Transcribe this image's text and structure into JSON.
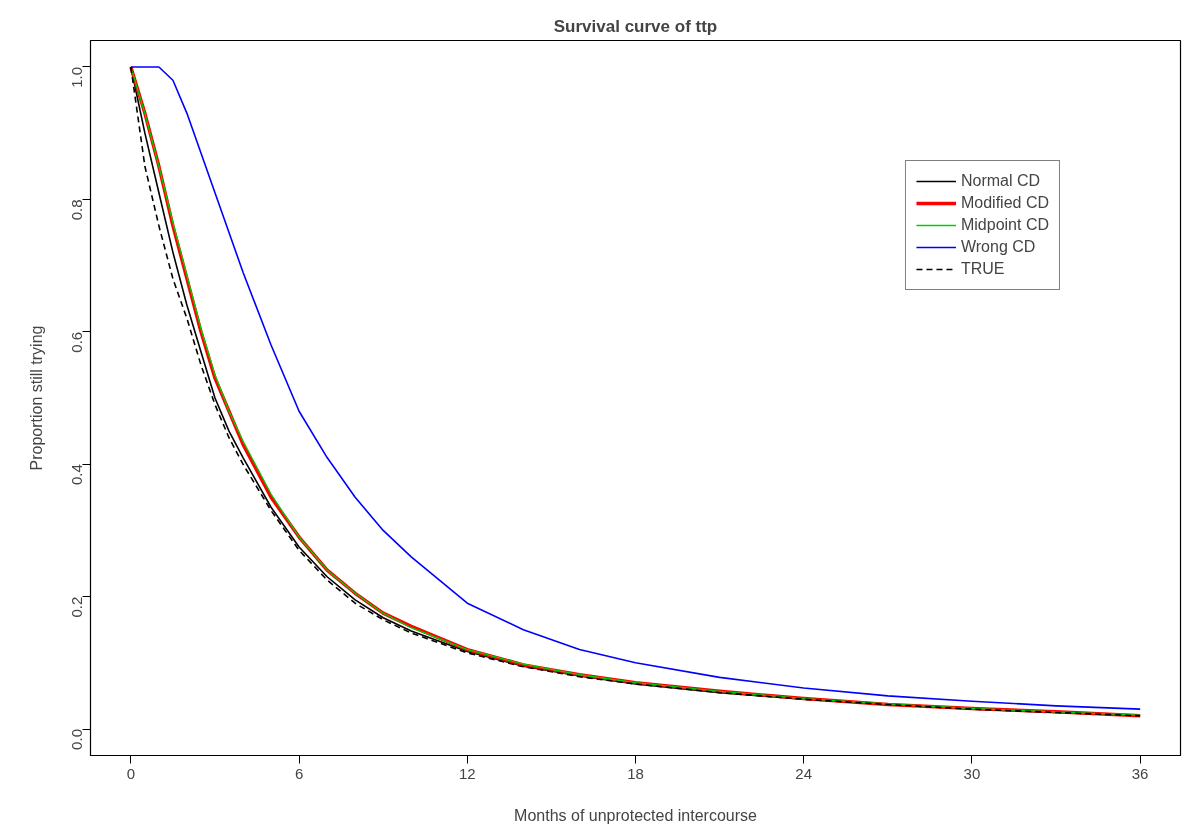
{
  "chart_data": {
    "type": "line",
    "title": "Survival curve of ttp",
    "xlabel": "Months of unprotected intercourse",
    "ylabel": "Proportion still trying",
    "x": [
      0,
      0.5,
      1,
      1.5,
      2,
      2.5,
      3,
      3.5,
      4,
      5,
      6,
      7,
      8,
      9,
      10,
      12,
      14,
      16,
      18,
      21,
      24,
      27,
      30,
      33,
      36
    ],
    "series": [
      {
        "name": "Normal CD",
        "color": "#000000",
        "line_style": "solid",
        "values": [
          1.0,
          0.9,
          0.81,
          0.72,
          0.64,
          0.57,
          0.5,
          0.45,
          0.41,
          0.335,
          0.275,
          0.23,
          0.195,
          0.168,
          0.148,
          0.117,
          0.095,
          0.08,
          0.068,
          0.055,
          0.045,
          0.037,
          0.03,
          0.025,
          0.02
        ]
      },
      {
        "name": "Modified CD",
        "color": "#ff0000",
        "line_style": "solid",
        "values": [
          1.0,
          0.93,
          0.85,
          0.76,
          0.68,
          0.6,
          0.53,
          0.48,
          0.43,
          0.35,
          0.29,
          0.24,
          0.205,
          0.175,
          0.155,
          0.12,
          0.097,
          0.082,
          0.07,
          0.057,
          0.046,
          0.037,
          0.031,
          0.026,
          0.02
        ]
      },
      {
        "name": "Midpoint CD",
        "color": "#00cd00",
        "line_style": "solid",
        "values": [
          1.0,
          0.93,
          0.85,
          0.765,
          0.685,
          0.605,
          0.535,
          0.48,
          0.435,
          0.355,
          0.29,
          0.24,
          0.205,
          0.175,
          0.153,
          0.12,
          0.098,
          0.082,
          0.07,
          0.057,
          0.046,
          0.038,
          0.031,
          0.026,
          0.021
        ]
      },
      {
        "name": "Wrong CD",
        "color": "#0000ff",
        "line_style": "solid",
        "values": [
          1.0,
          1.0,
          1.0,
          0.98,
          0.93,
          0.87,
          0.81,
          0.75,
          0.69,
          0.58,
          0.48,
          0.41,
          0.35,
          0.3,
          0.26,
          0.19,
          0.15,
          0.12,
          0.1,
          0.078,
          0.062,
          0.05,
          0.042,
          0.035,
          0.03
        ]
      },
      {
        "name": "TRUE",
        "color": "#000000",
        "line_style": "dashed",
        "values": [
          1.0,
          0.85,
          0.76,
          0.68,
          0.62,
          0.55,
          0.49,
          0.44,
          0.4,
          0.33,
          0.27,
          0.225,
          0.19,
          0.165,
          0.145,
          0.115,
          0.094,
          0.079,
          0.068,
          0.055,
          0.045,
          0.037,
          0.03,
          0.025,
          0.02
        ]
      }
    ],
    "xlim": [
      -1.44,
      37.44
    ],
    "ylim": [
      -0.04,
      1.04
    ],
    "xticks": [
      0,
      6,
      12,
      18,
      24,
      30,
      36
    ],
    "yticks": [
      {
        "value": 0,
        "label": "0.0"
      },
      {
        "value": 0.2,
        "label": "0.2"
      },
      {
        "value": 0.4,
        "label": "0.4"
      },
      {
        "value": 0.6,
        "label": "0.6"
      },
      {
        "value": 0.8,
        "label": "0.8"
      },
      {
        "value": 1,
        "label": "1.0"
      }
    ],
    "grid": false,
    "legend": "top right",
    "marker": "none"
  }
}
